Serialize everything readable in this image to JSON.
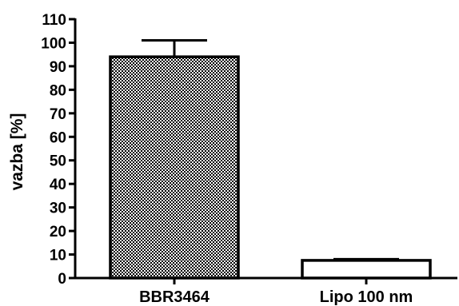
{
  "chart_data": {
    "type": "bar",
    "title": "",
    "xlabel": "",
    "ylabel": "vazba [%]",
    "ylim": [
      0,
      110
    ],
    "yticks": [
      0,
      10,
      20,
      30,
      40,
      50,
      60,
      70,
      80,
      90,
      100,
      110
    ],
    "categories": [
      "BBR3464",
      "Lipo 100 nm"
    ],
    "values": [
      94,
      7.5
    ],
    "errors": [
      7,
      0.5
    ],
    "fills": [
      "checkered",
      "white"
    ],
    "grid": false,
    "colors": {
      "bar_stroke": "#000000",
      "pattern_dark": "#000000",
      "pattern_light": "#ffffff"
    }
  }
}
